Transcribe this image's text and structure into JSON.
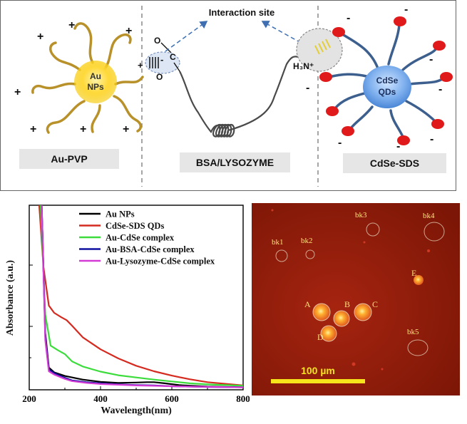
{
  "scheme": {
    "interaction_site": "Interaction site",
    "left_particle": {
      "line1": "Au",
      "line2": "NPs",
      "caption": "Au-PVP",
      "charge": "+"
    },
    "middle": {
      "caption": "BSA/LYSOZYME",
      "o_top": "O",
      "c": "C",
      "o_bottom": "O",
      "minus": "-",
      "plus": "+"
    },
    "right_particle": {
      "line1": "CdSe",
      "line2": "QDs",
      "caption": "CdSe-SDS",
      "charge": "-",
      "amine": "H₃N⁺"
    }
  },
  "chart_data": {
    "type": "line",
    "xlabel": "Wavelength(nm)",
    "ylabel": "Absorbance (a.u.)",
    "xlim": [
      200,
      800
    ],
    "xticks": [
      "200",
      "400",
      "600",
      "800"
    ],
    "series": [
      {
        "name": "Au NPs",
        "color": "#000000",
        "x": [
          235,
          245,
          255,
          270,
          300,
          350,
          400,
          450,
          500,
          530,
          550,
          580,
          620,
          700,
          800
        ],
        "y": [
          5.0,
          1.5,
          0.55,
          0.42,
          0.32,
          0.22,
          0.16,
          0.13,
          0.14,
          0.15,
          0.15,
          0.12,
          0.07,
          0.03,
          0.01
        ]
      },
      {
        "name": "CdSe-SDS QDs",
        "color": "#d42a1f",
        "x": [
          228,
          240,
          255,
          270,
          290,
          305,
          320,
          350,
          400,
          450,
          500,
          550,
          600,
          650,
          700,
          800
        ],
        "y": [
          5.0,
          3.3,
          2.25,
          2.05,
          1.93,
          1.85,
          1.7,
          1.38,
          1.05,
          0.8,
          0.6,
          0.45,
          0.33,
          0.23,
          0.15,
          0.06
        ]
      },
      {
        "name": "Au-CdSe complex",
        "color": "#3cdc3c",
        "x": [
          232,
          245,
          260,
          280,
          300,
          320,
          350,
          400,
          450,
          500,
          550,
          600,
          650,
          700,
          800
        ],
        "y": [
          5.0,
          2.0,
          1.15,
          1.03,
          0.92,
          0.72,
          0.58,
          0.44,
          0.34,
          0.28,
          0.22,
          0.17,
          0.12,
          0.09,
          0.05
        ]
      },
      {
        "name": "Au-BSA-CdSe complex",
        "color": "#1010a0",
        "x": [
          235,
          245,
          255,
          270,
          290,
          300,
          320,
          360,
          400,
          450,
          500,
          550,
          600,
          700,
          800
        ],
        "y": [
          5.0,
          1.4,
          0.5,
          0.4,
          0.31,
          0.27,
          0.2,
          0.15,
          0.12,
          0.09,
          0.07,
          0.06,
          0.04,
          0.02,
          0.01
        ]
      },
      {
        "name": "Au-Lysozyme-CdSe complex",
        "color": "#d43ad4",
        "x": [
          235,
          245,
          255,
          270,
          290,
          300,
          320,
          360,
          400,
          450,
          500,
          550,
          600,
          700,
          800
        ],
        "y": [
          5.0,
          1.3,
          0.45,
          0.36,
          0.28,
          0.24,
          0.18,
          0.13,
          0.1,
          0.08,
          0.06,
          0.05,
          0.04,
          0.02,
          0.01
        ]
      }
    ]
  },
  "micrograph": {
    "scale_label": "100 µm",
    "labels": [
      "bk1",
      "bk2",
      "bk3",
      "bk4",
      "bk5",
      "A",
      "B",
      "C",
      "D",
      "E"
    ]
  }
}
